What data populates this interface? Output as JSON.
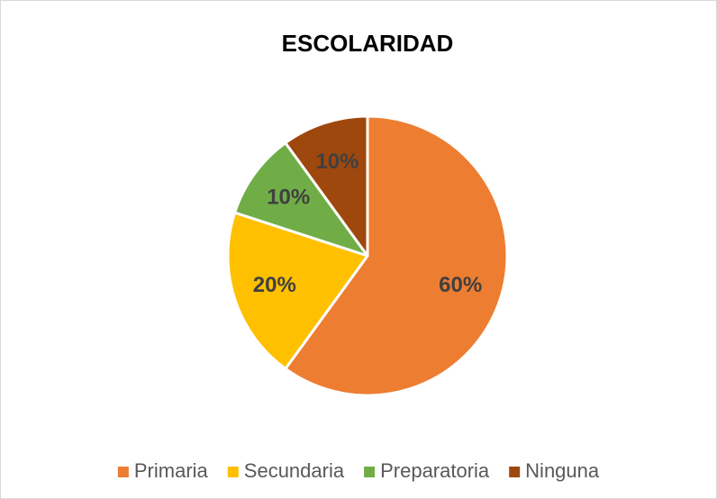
{
  "chart_data": {
    "type": "pie",
    "title": "ESCOLARIDAD",
    "categories": [
      "Primaria",
      "Secundaria",
      "Preparatoria",
      "Ninguna"
    ],
    "values": [
      60,
      20,
      10,
      10
    ],
    "value_labels": [
      "60%",
      "20%",
      "10%",
      "10%"
    ],
    "colors": [
      "#ED7D31",
      "#FFC000",
      "#70AD47",
      "#9E480E"
    ],
    "legend": "bottom"
  }
}
